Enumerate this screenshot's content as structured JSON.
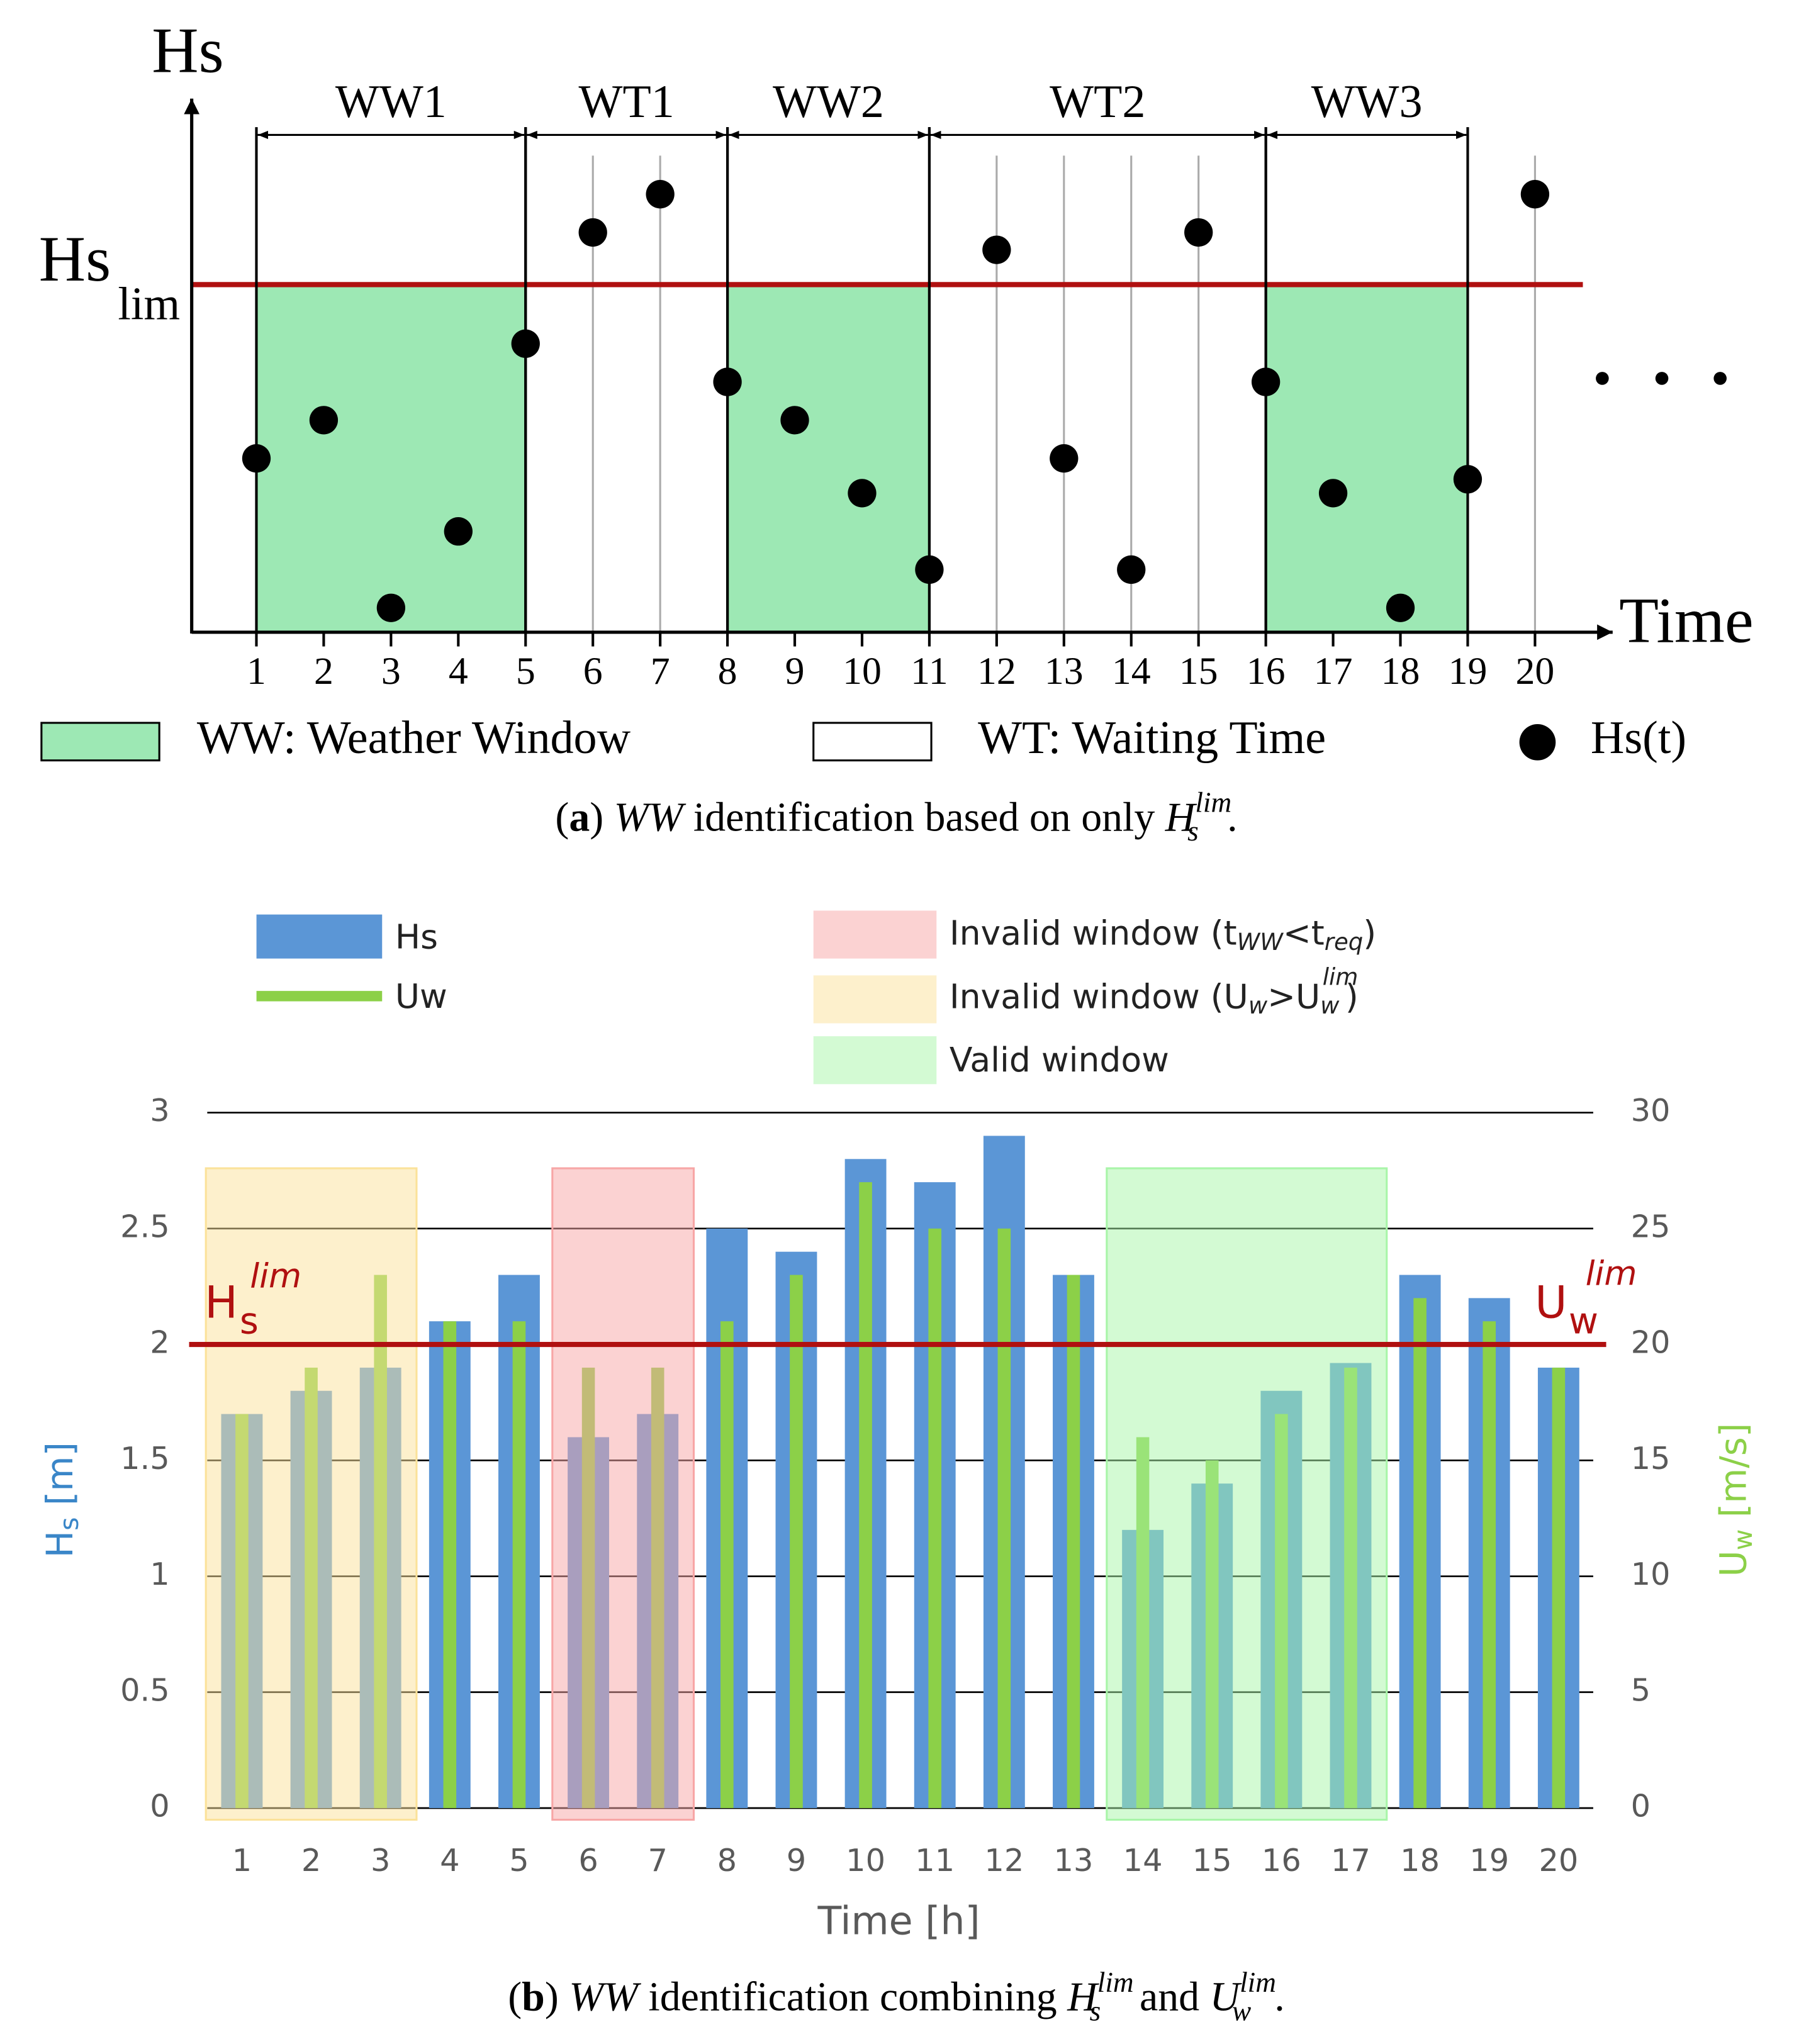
{
  "chart_data": [
    {
      "type": "scatter",
      "ylabel": "Hs",
      "xlabel": "Time",
      "x": [
        1,
        2,
        3,
        4,
        5,
        6,
        7,
        8,
        9,
        10,
        11,
        12,
        13,
        14,
        15,
        16,
        17,
        18,
        19,
        20
      ],
      "values": [
        0.5,
        0.61,
        0.07,
        0.29,
        0.83,
        1.15,
        1.26,
        0.72,
        0.61,
        0.4,
        0.18,
        1.1,
        0.5,
        0.18,
        1.15,
        0.72,
        0.4,
        0.07,
        0.44,
        1.26
      ],
      "color": "#000000",
      "xlim": [
        0,
        21
      ],
      "ylim": [
        0,
        1.52
      ],
      "xticks": [
        1,
        2,
        3,
        4,
        5,
        6,
        7,
        8,
        9,
        10,
        11,
        12,
        13,
        14,
        15,
        16,
        17,
        18,
        19,
        20
      ],
      "threshold": {
        "value": 1,
        "label": "Hs",
        "sub": "lim",
        "color": "#b01010"
      },
      "windows": [
        {
          "label": "WW1",
          "start": 1,
          "end": 5,
          "color": "#9de8b4"
        },
        {
          "label": "WT1",
          "start": 5,
          "end": 8,
          "color": "#ffffff"
        },
        {
          "label": "WW2",
          "start": 8,
          "end": 11,
          "color": "#9de8b4"
        },
        {
          "label": "WT2",
          "start": 11,
          "end": 16,
          "color": "#ffffff"
        },
        {
          "label": "WW3",
          "start": 16,
          "end": 19,
          "color": "#9de8b4"
        }
      ],
      "legend": [
        {
          "label": "WW: Weather Window",
          "color": "#9de8b4",
          "marker": "rect"
        },
        {
          "label": "WT: Waiting Time",
          "color": "#ffffff",
          "marker": "rect"
        },
        {
          "label": "Hs(t)",
          "color": "#000000",
          "marker": "circle"
        }
      ],
      "caption": [
        "(",
        "a",
        ") ",
        "WW",
        " identification based on only ",
        "H",
        "lim",
        "s",
        "."
      ]
    },
    {
      "type": "bar",
      "categories": [
        "1",
        "2",
        "3",
        "4",
        "5",
        "6",
        "7",
        "8",
        "9",
        "10",
        "11",
        "12",
        "13",
        "14",
        "15",
        "16",
        "17",
        "18",
        "19",
        "20"
      ],
      "series": [
        {
          "name": "Hs",
          "color": "#5b96d6",
          "values": [
            1.7,
            1.8,
            1.9,
            2.1,
            2.3,
            1.6,
            1.7,
            2.5,
            2.4,
            2.8,
            2.7,
            2.9,
            2.3,
            1.2,
            1.4,
            1.8,
            1.92,
            2.3,
            2.2,
            1.9
          ]
        },
        {
          "name": "Uw",
          "color": "#8cd048",
          "axis": "y2",
          "values": [
            17,
            19,
            23,
            21,
            21,
            19,
            19,
            21,
            23,
            27,
            25,
            25,
            23,
            16,
            15,
            17,
            19,
            22,
            21,
            19
          ]
        }
      ],
      "ylim": [
        0,
        3
      ],
      "yticks": [
        0,
        0.5,
        1,
        1.5,
        2,
        2.5,
        3
      ],
      "y2lim": [
        0,
        30
      ],
      "y2ticks": [
        0,
        5,
        10,
        15,
        20,
        25,
        30
      ],
      "grid": true,
      "xlabel": "Time [h]",
      "ylabel": [
        "H",
        "s",
        " [m]"
      ],
      "y2label": [
        "U",
        "w",
        " [m/s]"
      ],
      "threshold": {
        "value": 2,
        "color": "#b01010",
        "label": [
          "H",
          "s",
          "lim"
        ],
        "label2": [
          "U",
          "w",
          "lim"
        ]
      },
      "regions": [
        {
          "name": [
            "Invalid window (t",
            "WW",
            "<t",
            "req",
            ")"
          ],
          "color": "#f7a6a6",
          "from": "6",
          "to": "7"
        },
        {
          "name": [
            "Invalid window (U",
            "w",
            ">U",
            "w",
            "lim",
            ")"
          ],
          "color": "#fbe29a",
          "from": "1",
          "to": "3"
        },
        {
          "name": [
            "Valid window"
          ],
          "color": "#a8f5a8",
          "from": "14",
          "to": "17"
        }
      ],
      "caption": [
        "(",
        "b",
        ") ",
        "WW",
        " identification combining ",
        "H",
        "lim",
        "s",
        " and ",
        "U",
        "lim",
        "w",
        "."
      ]
    }
  ]
}
